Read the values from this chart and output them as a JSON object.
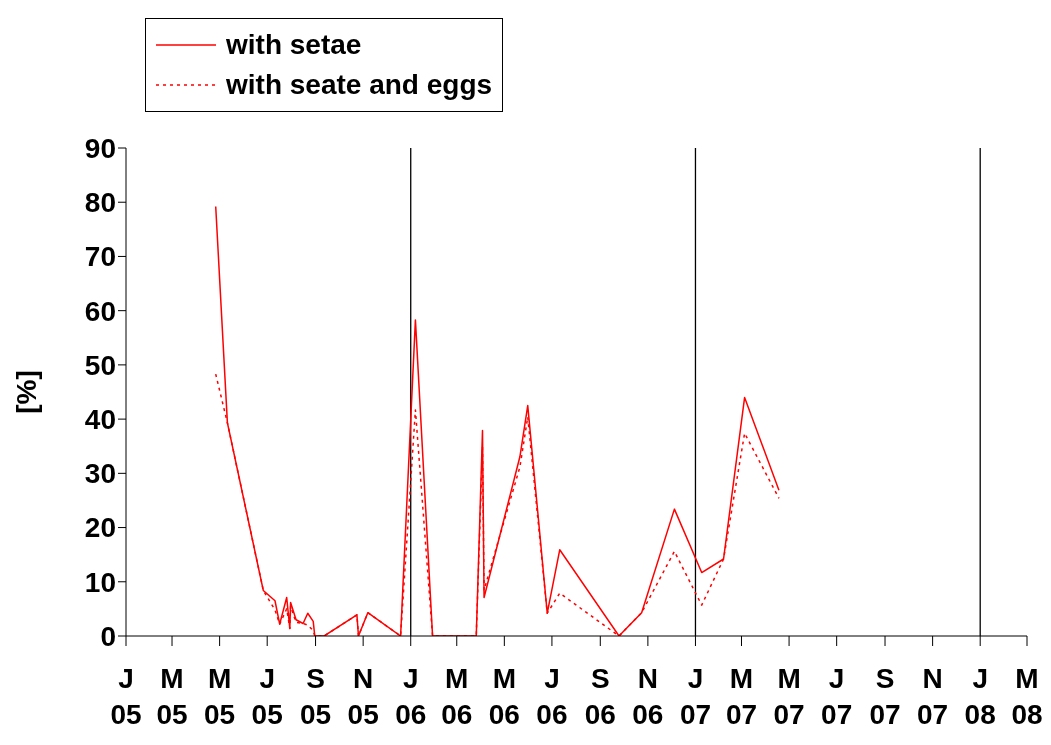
{
  "chart_data": {
    "type": "line",
    "ylabel": "[%]",
    "x": [
      "2005-04-26",
      "2005-05-11",
      "2005-06-26",
      "2005-07-11",
      "2005-07-17",
      "2005-07-26",
      "2005-07-30",
      "2005-07-31",
      "2005-08-07",
      "2005-08-16",
      "2005-08-22",
      "2005-08-29",
      "2005-08-31",
      "2005-09-12",
      "2005-10-24",
      "2005-10-26",
      "2005-11-07",
      "2005-12-19",
      "2006-01-07",
      "2006-01-29",
      "2006-03-26",
      "2006-04-03",
      "2006-04-05",
      "2006-05-21",
      "2006-05-31",
      "2006-06-25",
      "2006-07-11",
      "2006-09-25",
      "2006-10-24",
      "2006-12-05",
      "2007-01-09",
      "2007-02-06",
      "2007-03-05",
      "2007-04-18"
    ],
    "series": [
      {
        "name": "with setae",
        "color": "#ff0000",
        "line_style": "solid",
        "values": [
          79.2,
          39.3,
          8.4,
          6.5,
          2.2,
          7.1,
          1.4,
          6.2,
          3.0,
          2.3,
          4.2,
          2.7,
          0,
          0,
          3.9,
          0,
          4.3,
          0,
          58.3,
          0,
          0,
          37.9,
          7.1,
          33.1,
          42.5,
          4.2,
          15.9,
          0,
          4.3,
          23.4,
          11.7,
          14.2,
          44.0,
          26.9
        ]
      },
      {
        "name": "with seate and eggs",
        "color": "#ff0000",
        "line_style": "dotted",
        "values": [
          48.3,
          39.3,
          8.4,
          4.8,
          2.2,
          5.0,
          1.4,
          5.5,
          2.5,
          2.3,
          2.0,
          1.0,
          0,
          0,
          3.9,
          0,
          4.3,
          0,
          41.7,
          0,
          0,
          35.0,
          8.5,
          31.2,
          40.4,
          4.2,
          7.9,
          0,
          4.3,
          15.6,
          5.7,
          14.2,
          37.4,
          25.4
        ]
      }
    ],
    "xlim": [
      "2005-01-01",
      "2008-03-01"
    ],
    "xticks": [
      {
        "value": "2005-01-01",
        "label": "J 05"
      },
      {
        "value": "2005-03-01",
        "label": "M 05"
      },
      {
        "value": "2005-05-01",
        "label": "M 05"
      },
      {
        "value": "2005-07-01",
        "label": "J 05"
      },
      {
        "value": "2005-09-01",
        "label": "S 05"
      },
      {
        "value": "2005-11-01",
        "label": "N 05"
      },
      {
        "value": "2006-01-01",
        "label": "J 06"
      },
      {
        "value": "2006-03-01",
        "label": "M 06"
      },
      {
        "value": "2006-05-01",
        "label": "M 06"
      },
      {
        "value": "2006-07-01",
        "label": "J 06"
      },
      {
        "value": "2006-09-01",
        "label": "S 06"
      },
      {
        "value": "2006-11-01",
        "label": "N 06"
      },
      {
        "value": "2007-01-01",
        "label": "J 07"
      },
      {
        "value": "2007-03-01",
        "label": "M 07"
      },
      {
        "value": "2007-05-01",
        "label": "M 07"
      },
      {
        "value": "2007-07-01",
        "label": "J 07"
      },
      {
        "value": "2007-09-01",
        "label": "S 07"
      },
      {
        "value": "2007-11-01",
        "label": "N 07"
      },
      {
        "value": "2008-01-01",
        "label": "J 08"
      },
      {
        "value": "2008-03-01",
        "label": "M 08"
      }
    ],
    "ylim": [
      0,
      90
    ],
    "yticks": [
      0,
      10,
      20,
      30,
      40,
      50,
      60,
      70,
      80,
      90
    ],
    "ref_lines": [
      {
        "axis": "x",
        "value": "2006-01-01",
        "color": "#000000"
      },
      {
        "axis": "x",
        "value": "2007-01-01",
        "color": "#000000"
      },
      {
        "axis": "x",
        "value": "2008-01-01",
        "color": "#000000"
      }
    ],
    "legend": "top left",
    "grid": false,
    "marker": "none"
  }
}
